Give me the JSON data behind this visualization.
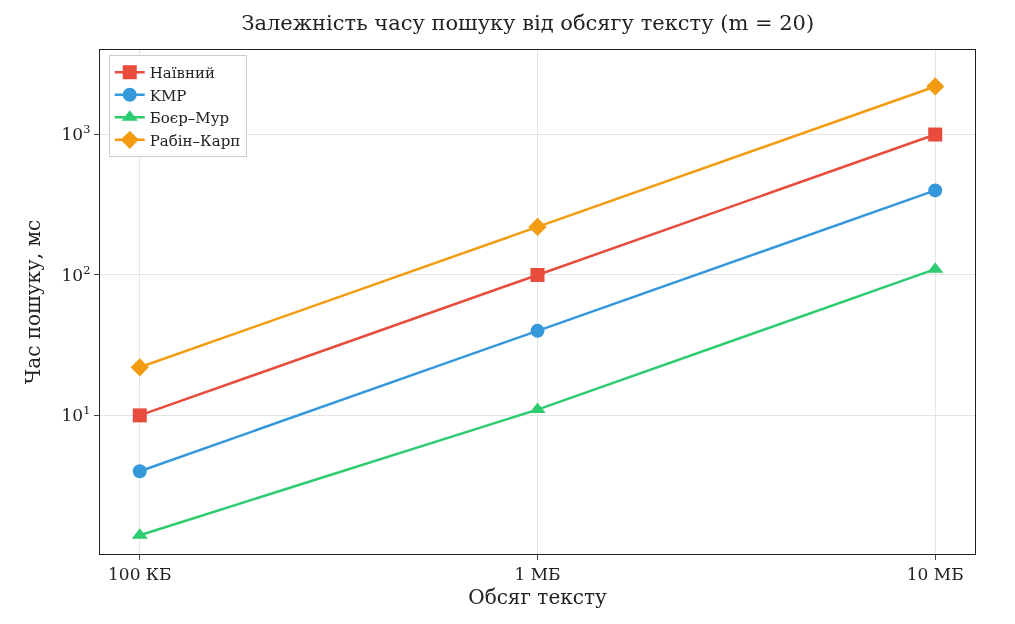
{
  "chart_data": {
    "type": "line",
    "title": "Залежність часу пошуку від обсягу тексту (m = 20)",
    "xlabel": "Обсяг тексту",
    "ylabel": "Час пошуку, мс",
    "categories": [
      "100 КБ",
      "1 МБ",
      "10 МБ"
    ],
    "series": [
      {
        "name": "Наївний",
        "color": "#e74c3c",
        "marker": "square",
        "values": [
          10,
          100,
          1000
        ]
      },
      {
        "name": "KMP",
        "color": "#3498db",
        "marker": "circle",
        "values": [
          4,
          40,
          400
        ]
      },
      {
        "name": "Боєр–Мур",
        "color": "#2ecc71",
        "marker": "triangle",
        "values": [
          1.4,
          11,
          110
        ]
      },
      {
        "name": "Рабін–Карп",
        "color": "#f39c12",
        "marker": "diamond",
        "values": [
          22,
          220,
          2200
        ]
      }
    ],
    "log": "y",
    "ylim": [
      1.03,
      4000
    ],
    "yticks": [
      {
        "value": 10,
        "label": "10$^{1}$"
      },
      {
        "value": 100,
        "label": "10$^{2}$"
      },
      {
        "value": 1000,
        "label": "10$^{3}$"
      }
    ],
    "grid": true,
    "legend": "top left",
    "line_style": "solid"
  }
}
